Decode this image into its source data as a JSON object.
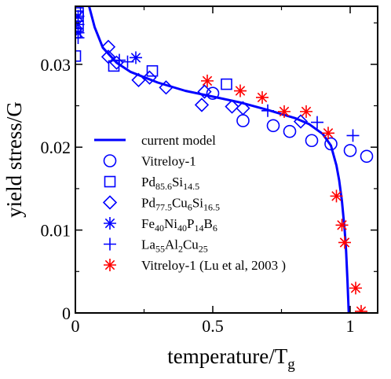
{
  "chart_data": {
    "type": "scatter",
    "xlabel": "temperature/T",
    "xlabel_sub": "g",
    "ylabel": "yield stress/G",
    "xlim": [
      0,
      1.1
    ],
    "ylim": [
      0,
      0.037
    ],
    "x_ticks": [
      0,
      0.5,
      1
    ],
    "x_tick_labels": [
      "0",
      "0.5",
      "1"
    ],
    "y_ticks": [
      0,
      0.01,
      0.02,
      0.03
    ],
    "y_tick_labels": [
      "0",
      "0.01",
      "0.02",
      "0.03"
    ],
    "grid": false,
    "legend_position": "lower-left",
    "series": [
      {
        "name": "current model",
        "legend_parts": [
          [
            "current model",
            ""
          ]
        ],
        "marker": "line",
        "color": "#0000ff",
        "points": [
          [
            0.05,
            0.037
          ],
          [
            0.07,
            0.0345
          ],
          [
            0.1,
            0.032
          ],
          [
            0.15,
            0.0302
          ],
          [
            0.2,
            0.0291
          ],
          [
            0.3,
            0.0278
          ],
          [
            0.4,
            0.0268
          ],
          [
            0.5,
            0.0261
          ],
          [
            0.6,
            0.0254
          ],
          [
            0.7,
            0.0245
          ],
          [
            0.8,
            0.0235
          ],
          [
            0.85,
            0.0228
          ],
          [
            0.9,
            0.0216
          ],
          [
            0.93,
            0.0202
          ],
          [
            0.95,
            0.0178
          ],
          [
            0.96,
            0.016
          ],
          [
            0.97,
            0.0135
          ],
          [
            0.98,
            0.01
          ],
          [
            0.985,
            0.0075
          ],
          [
            0.99,
            0.004
          ],
          [
            0.995,
            0.0
          ]
        ]
      },
      {
        "name": "Vitreloy-1",
        "legend_parts": [
          [
            "Vitreloy-1",
            ""
          ]
        ],
        "marker": "circle",
        "color": "#0000ff",
        "points": [
          [
            0.5,
            0.0265
          ],
          [
            0.61,
            0.0232
          ],
          [
            0.72,
            0.0226
          ],
          [
            0.78,
            0.0219
          ],
          [
            0.86,
            0.0208
          ],
          [
            0.93,
            0.0204
          ],
          [
            1.0,
            0.0196
          ],
          [
            1.06,
            0.0189
          ]
        ]
      },
      {
        "name": "Pd85.6Si14.5",
        "legend_parts": [
          [
            "Pd",
            ""
          ],
          [
            "85.6",
            "sub"
          ],
          [
            "Si",
            ""
          ],
          [
            "14.5",
            "sub"
          ]
        ],
        "marker": "square",
        "color": "#0000ff",
        "points": [
          [
            0.0,
            0.0366
          ],
          [
            0.01,
            0.0362
          ],
          [
            0.01,
            0.0358
          ],
          [
            0.01,
            0.0346
          ],
          [
            0.0,
            0.0338
          ],
          [
            0.0,
            0.031
          ],
          [
            0.14,
            0.0298
          ],
          [
            0.28,
            0.0292
          ],
          [
            0.55,
            0.0276
          ]
        ]
      },
      {
        "name": "Pd77.5Cu6Si16.5",
        "legend_parts": [
          [
            "Pd",
            ""
          ],
          [
            "77.5",
            "sub"
          ],
          [
            "Cu",
            ""
          ],
          [
            "6",
            "sub"
          ],
          [
            "Si",
            ""
          ],
          [
            "16.5",
            "sub"
          ]
        ],
        "marker": "diamond",
        "color": "#0000ff",
        "points": [
          [
            0.12,
            0.0321
          ],
          [
            0.12,
            0.0309
          ],
          [
            0.15,
            0.0302
          ],
          [
            0.23,
            0.0281
          ],
          [
            0.27,
            0.0284
          ],
          [
            0.33,
            0.0272
          ],
          [
            0.46,
            0.0251
          ],
          [
            0.47,
            0.0267
          ],
          [
            0.57,
            0.0249
          ],
          [
            0.61,
            0.0247
          ],
          [
            0.82,
            0.0231
          ]
        ]
      },
      {
        "name": "Fe40Ni40P14B6",
        "legend_parts": [
          [
            "Fe",
            ""
          ],
          [
            "40",
            "sub"
          ],
          [
            "Ni",
            ""
          ],
          [
            "40",
            "sub"
          ],
          [
            "P",
            ""
          ],
          [
            "14",
            "sub"
          ],
          [
            "B",
            ""
          ],
          [
            "6",
            "sub"
          ]
        ],
        "marker": "asterisk",
        "color": "#0000ff",
        "points": [
          [
            0.01,
            0.0358
          ],
          [
            0.01,
            0.0348
          ],
          [
            0.01,
            0.0338
          ],
          [
            0.22,
            0.0308
          ]
        ]
      },
      {
        "name": "La55Al2Cu25",
        "legend_parts": [
          [
            "La",
            ""
          ],
          [
            "55",
            "sub"
          ],
          [
            "Al",
            ""
          ],
          [
            "2",
            "sub"
          ],
          [
            "Cu",
            ""
          ],
          [
            "25",
            "sub"
          ]
        ],
        "marker": "plus",
        "color": "#0000ff",
        "points": [
          [
            0.0,
            0.0356
          ],
          [
            0.0,
            0.0343
          ],
          [
            0.01,
            0.0332
          ],
          [
            0.16,
            0.0305
          ],
          [
            0.19,
            0.0303
          ],
          [
            0.7,
            0.0244
          ],
          [
            0.88,
            0.023
          ],
          [
            1.01,
            0.0214
          ]
        ]
      },
      {
        "name": "Vitreloy-1 (Lu et al, 2003 )",
        "legend_parts": [
          [
            "Vitreloy-1 (Lu et al, 2003 )",
            ""
          ]
        ],
        "marker": "asterisk",
        "color": "#ff0000",
        "points": [
          [
            0.48,
            0.028
          ],
          [
            0.6,
            0.0268
          ],
          [
            0.68,
            0.026
          ],
          [
            0.76,
            0.0243
          ],
          [
            0.84,
            0.0243
          ],
          [
            0.92,
            0.0217
          ],
          [
            0.95,
            0.0141
          ],
          [
            0.97,
            0.0106
          ],
          [
            0.98,
            0.0085
          ],
          [
            1.02,
            0.003
          ],
          [
            1.04,
            0.0002
          ]
        ]
      }
    ]
  }
}
